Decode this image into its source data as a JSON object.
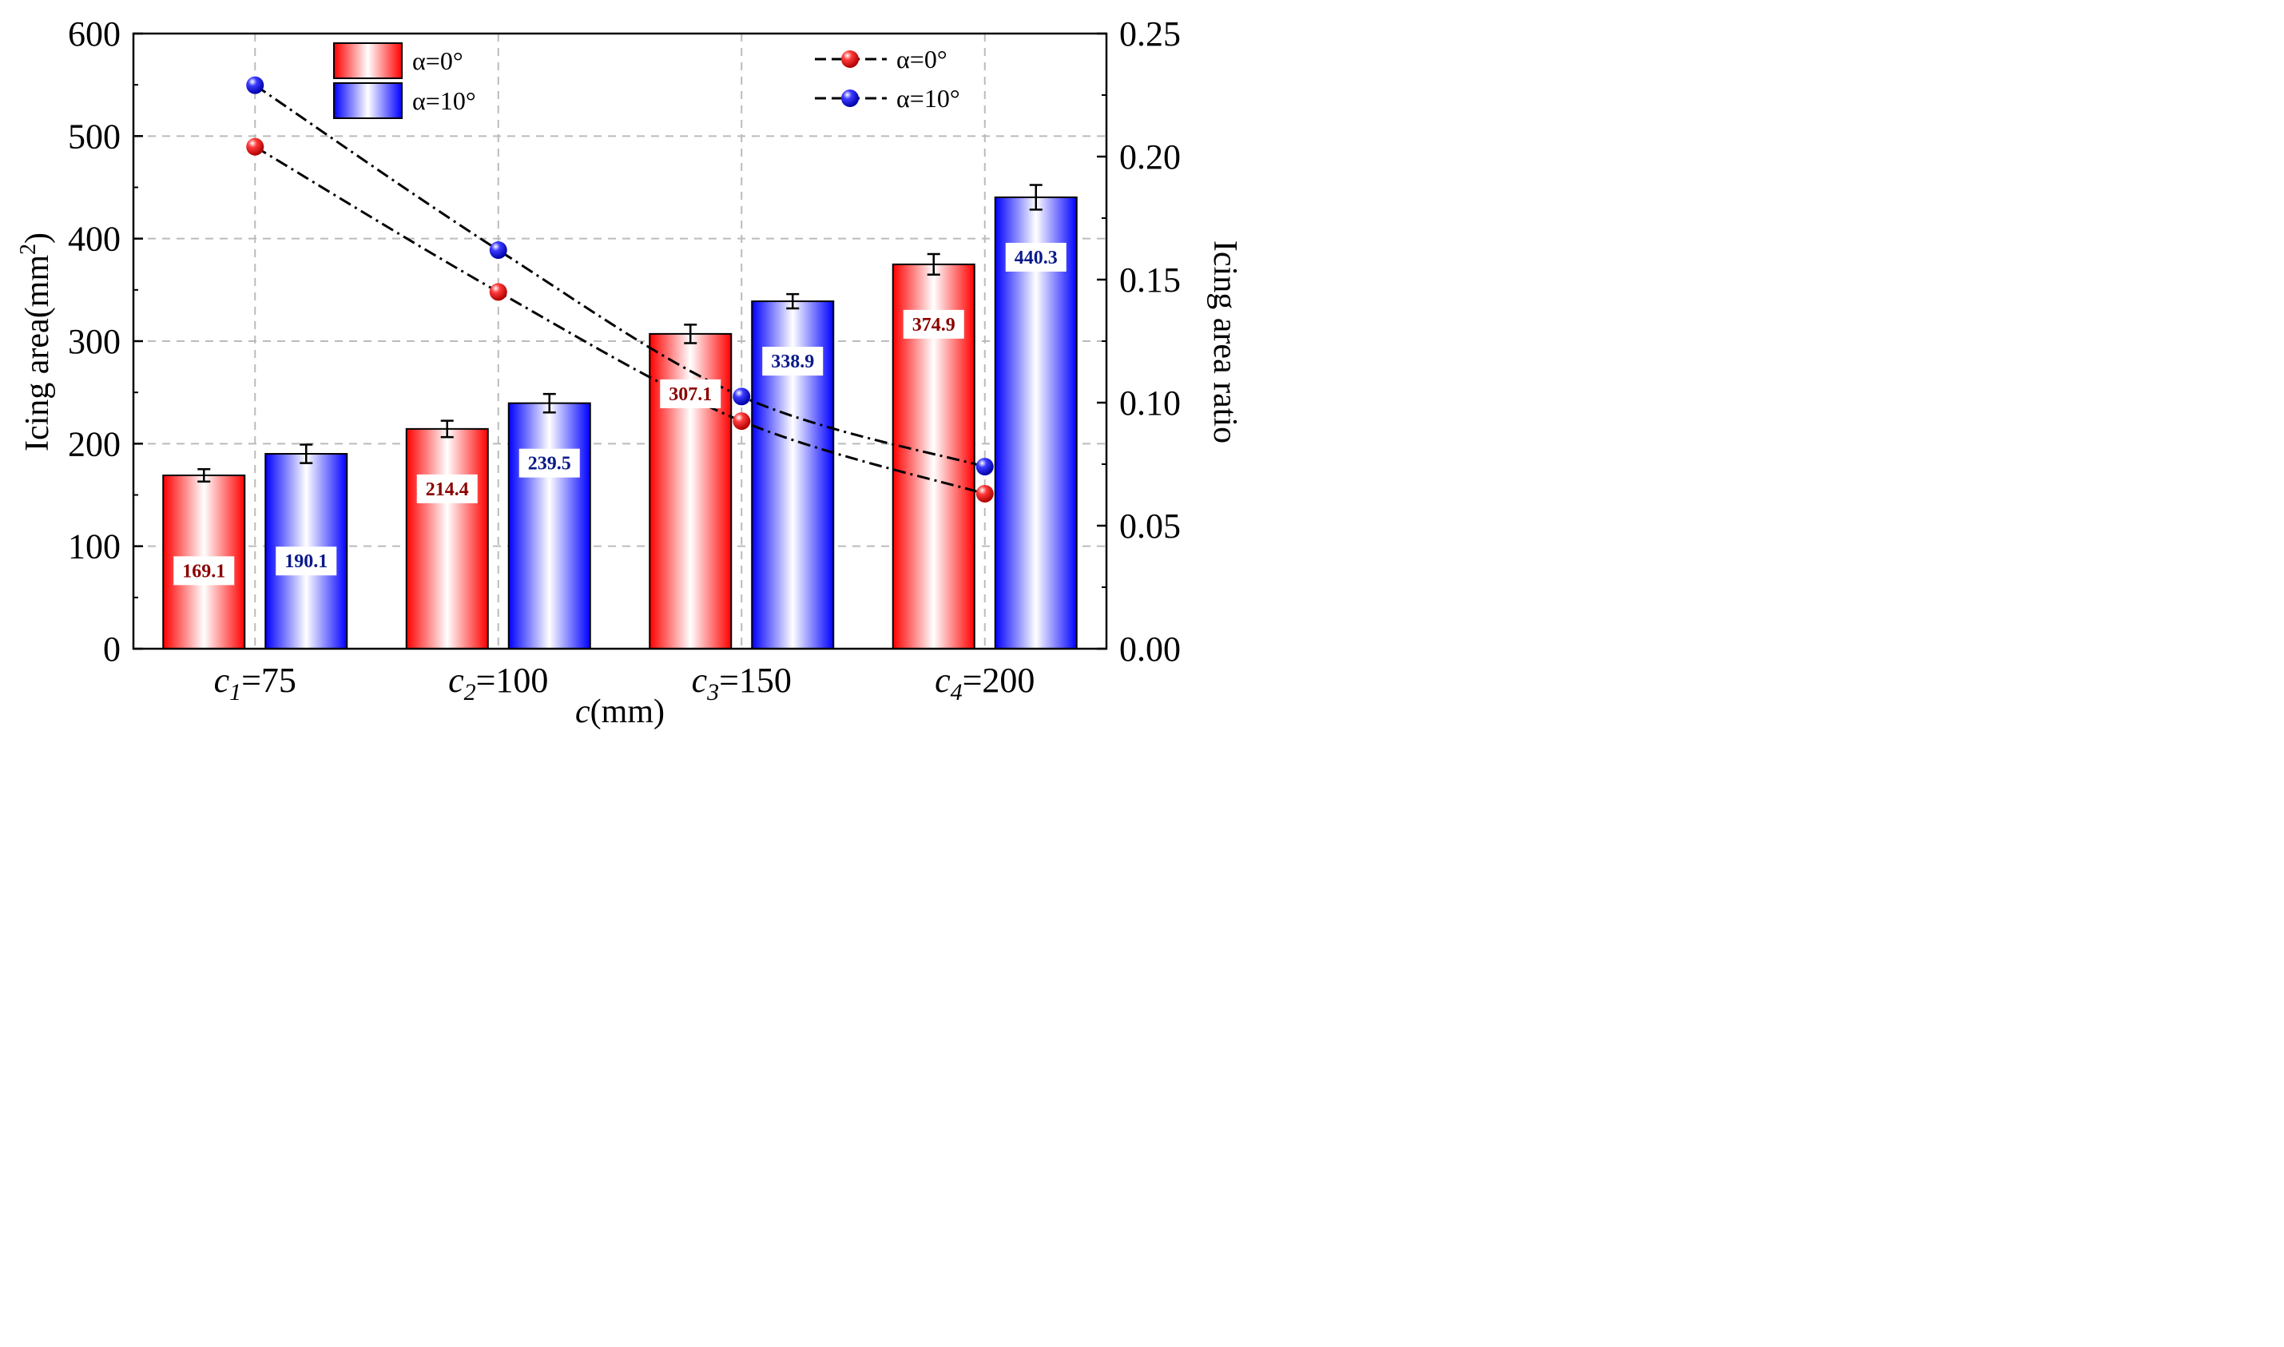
{
  "colors": {
    "red": "#ff0000",
    "blue": "#0000ff",
    "red_label": "#8b0000",
    "blue_label": "#0a1a8a",
    "grid": "#bbbbbb"
  },
  "chart_data": {
    "type": "bar",
    "categories": [
      {
        "var": "c",
        "sub": "1",
        "rest": "=75"
      },
      {
        "var": "c",
        "sub": "2",
        "rest": "=100"
      },
      {
        "var": "c",
        "sub": "3",
        "rest": "=150"
      },
      {
        "var": "c",
        "sub": "4",
        "rest": "=200"
      }
    ],
    "series": [
      {
        "name": "α=0°",
        "kind": "bar",
        "axis": "left",
        "color": "#ff0000",
        "values": [
          169.1,
          214.4,
          307.1,
          374.9
        ],
        "errors": [
          6,
          8,
          9,
          10
        ],
        "labels": [
          "169.1",
          "214.4",
          "307.1",
          "374.9"
        ]
      },
      {
        "name": "α=10°",
        "kind": "bar",
        "axis": "left",
        "color": "#0000ff",
        "values": [
          190.1,
          239.5,
          338.9,
          440.3
        ],
        "errors": [
          9,
          9,
          7,
          12
        ],
        "labels": [
          "190.1",
          "239.5",
          "338.9",
          "440.3"
        ]
      }
    ],
    "ratio_series": [
      {
        "name": "α=0°",
        "kind": "line",
        "axis": "right",
        "color": "#ff0000",
        "values": [
          0.204,
          0.145,
          0.0925,
          0.063
        ]
      },
      {
        "name": "α=10°",
        "kind": "line",
        "axis": "right",
        "color": "#0000ff",
        "values": [
          0.229,
          0.162,
          0.1025,
          0.074
        ]
      }
    ],
    "left_axis": {
      "label_main": "Icing area(mm",
      "label_sup": "2",
      "label_end": ")",
      "ylim": [
        0,
        600
      ],
      "ticks": [
        "0",
        "100",
        "200",
        "300",
        "400",
        "500",
        "600"
      ]
    },
    "right_axis": {
      "label": "Icing area ratio",
      "ylim": [
        0,
        0.25
      ],
      "ticks": [
        "0.00",
        "0.05",
        "0.10",
        "0.15",
        "0.20",
        "0.25"
      ]
    },
    "xlabel": {
      "var": "c",
      "rest": "(mm)"
    },
    "grid": true,
    "legend": {
      "bars": [
        "α=0°",
        "α=10°"
      ],
      "lines": [
        "α=0°",
        "α=10°"
      ],
      "bars_position": "top-left",
      "lines_position": "top-right"
    }
  }
}
